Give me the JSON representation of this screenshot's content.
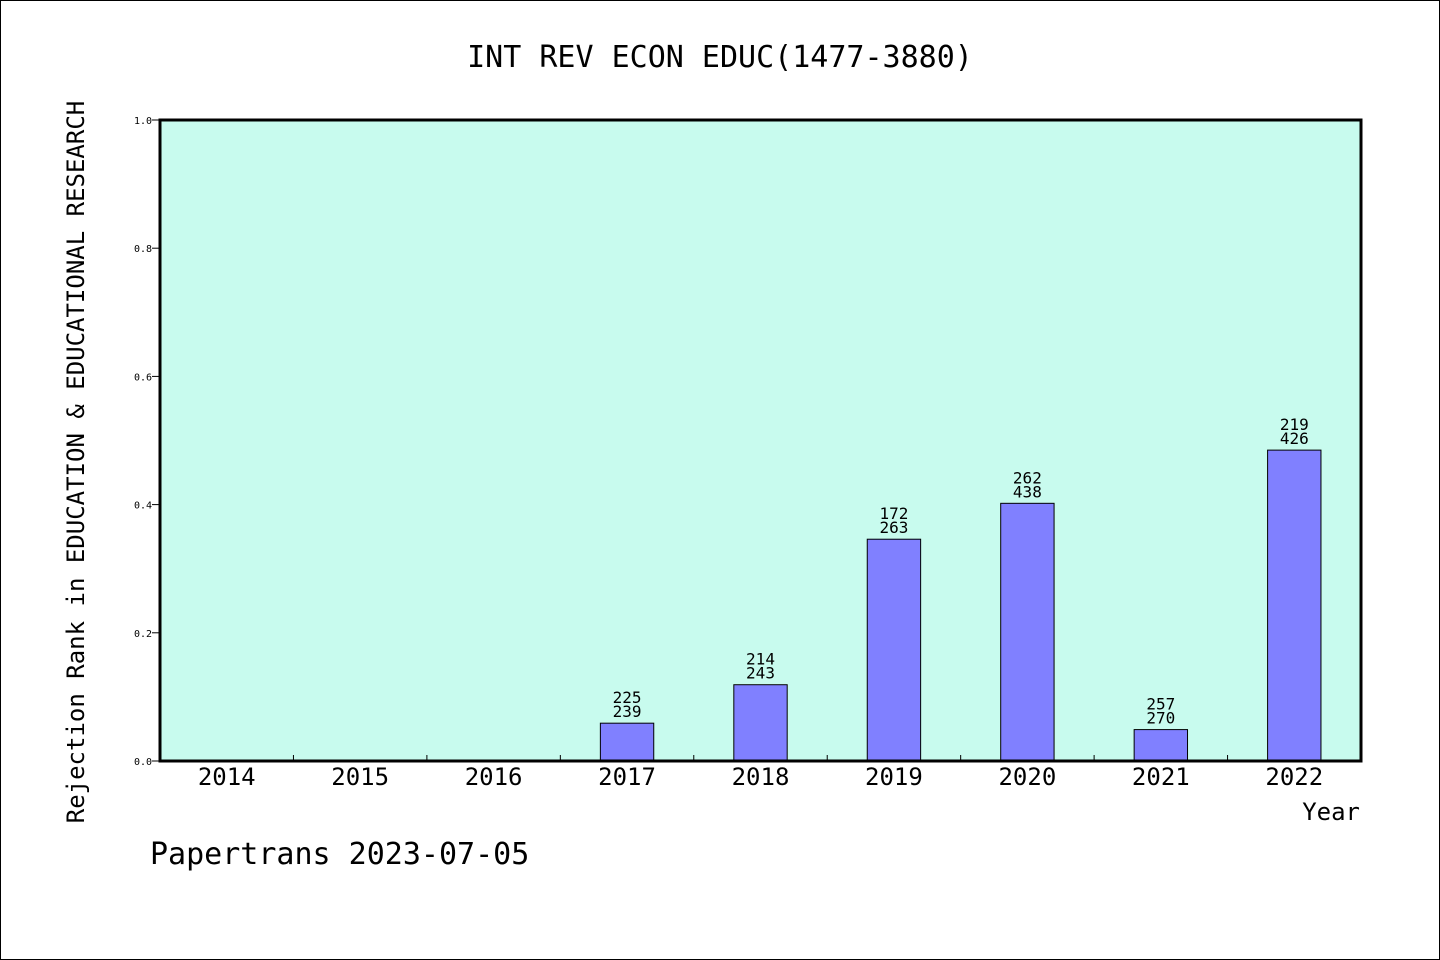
{
  "chart_data": {
    "type": "bar",
    "title": "INT REV ECON EDUC(1477-3880)",
    "xlabel": "Year",
    "ylabel": "Rejection Rank in EDUCATION & EDUCATIONAL RESEARCH",
    "categories": [
      "2014",
      "2015",
      "2016",
      "2017",
      "2018",
      "2019",
      "2020",
      "2021",
      "2022"
    ],
    "values": [
      null,
      null,
      null,
      0.059,
      0.119,
      0.346,
      0.402,
      0.049,
      0.485
    ],
    "bar_labels": [
      null,
      null,
      null,
      [
        "225",
        "239"
      ],
      [
        "214",
        "243"
      ],
      [
        "172",
        "263"
      ],
      [
        "262",
        "438"
      ],
      [
        "257",
        "270"
      ],
      [
        "219",
        "426"
      ]
    ],
    "ylim": [
      0,
      1.0
    ],
    "yticks": [
      "0.0",
      "0.2",
      "0.4",
      "0.6",
      "0.8",
      "1.0"
    ],
    "grid": false,
    "footer": "Papertrans 2023-07-05",
    "colors": {
      "plot_background": "#c8fbee",
      "bar_fill": "#8080ff",
      "bar_stroke": "#000000"
    }
  }
}
